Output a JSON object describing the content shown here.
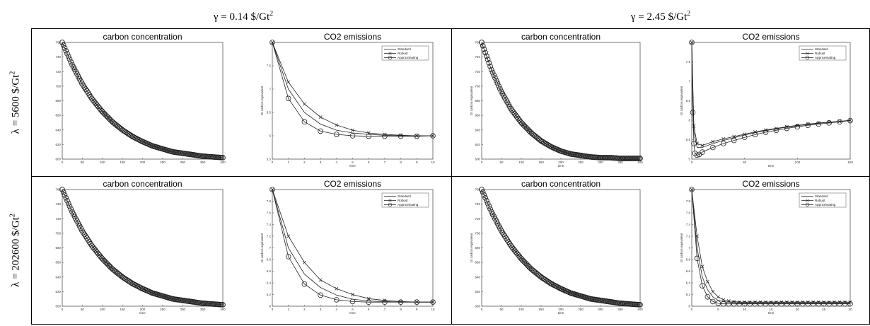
{
  "column_headers": [
    {
      "text": "γ = 0.14 $/Gt",
      "sup": "2"
    },
    {
      "text": "γ = 2.45 $/Gt",
      "sup": "2"
    }
  ],
  "row_labels": [
    {
      "text": "λ = 5600 $/Gt",
      "sup": "2"
    },
    {
      "text": "λ = 202600 $/Gt",
      "sup": "2"
    }
  ],
  "colors": {
    "line": "#222222",
    "axis": "#555555",
    "background": "#ffffff"
  },
  "chart_data": [
    {
      "id": "r0c0",
      "type": "line",
      "title": "carbon concentration",
      "xlabel": "",
      "ylabel": "",
      "xlim": [
        0,
        400
      ],
      "ylim": [
        600,
        760
      ],
      "xticks": [
        0,
        50,
        100,
        150,
        200,
        250,
        300,
        350,
        400
      ],
      "yticks": [
        600,
        620,
        640,
        660,
        680,
        700,
        720,
        740,
        760
      ],
      "yticklabels": [
        "600",
        "620",
        "640",
        "660",
        "680",
        "700",
        "720",
        "740",
        "760"
      ],
      "markers": "dense-circle",
      "series": [
        {
          "x": [
            0,
            25,
            50,
            75,
            100,
            125,
            150,
            175,
            200,
            225,
            250,
            275,
            300,
            325,
            350,
            375,
            400
          ],
          "y": [
            760,
            729,
            703,
            682,
            665,
            651,
            640,
            631,
            624,
            618,
            614,
            610,
            608,
            606,
            604,
            603,
            602
          ]
        }
      ]
    },
    {
      "id": "r0c1",
      "type": "line",
      "title": "CO2 emissions",
      "xlabel": "time",
      "ylabel": "Gt carbon equivalent",
      "xlim": [
        0,
        10
      ],
      "ylim": [
        5.5,
        8
      ],
      "xticks": [
        0,
        1,
        2,
        3,
        4,
        5,
        6,
        7,
        8,
        9,
        10
      ],
      "yticks": [
        5.5,
        6,
        6.5,
        7,
        7.5
      ],
      "yticklabels": [
        "5.5",
        "6",
        "6.5",
        "7",
        "7.5"
      ],
      "legend": [
        "Standard",
        "Robust",
        "Approximating"
      ],
      "legend_position": "top-right",
      "series": [
        {
          "name": "Standard",
          "marker": "none",
          "x": [
            0,
            1,
            2,
            3,
            4,
            5,
            6,
            7,
            8,
            9,
            10
          ],
          "y": [
            8,
            7.0,
            6.5,
            6.25,
            6.12,
            6.06,
            6.03,
            6.01,
            6.0,
            6.0,
            6.0
          ]
        },
        {
          "name": "Robust",
          "marker": "x",
          "x": [
            0,
            1,
            2,
            3,
            4,
            5,
            6,
            7,
            8,
            9,
            10
          ],
          "y": [
            8,
            7.15,
            6.68,
            6.4,
            6.23,
            6.12,
            6.06,
            6.03,
            6.01,
            6.0,
            6.0
          ]
        },
        {
          "name": "Approximating",
          "marker": "o",
          "x": [
            0,
            1,
            2,
            3,
            4,
            5,
            6,
            7,
            8,
            9,
            10
          ],
          "y": [
            8,
            6.8,
            6.3,
            6.1,
            6.03,
            6.0,
            5.99,
            5.99,
            5.99,
            5.99,
            6.0
          ]
        }
      ]
    },
    {
      "id": "r0c2",
      "type": "line",
      "title": "carbon concentration",
      "xlabel": "time",
      "ylabel": "Gt carbon equivalent",
      "xlim": [
        0,
        400
      ],
      "ylim": [
        600,
        760
      ],
      "xticks": [
        0,
        50,
        100,
        150,
        200,
        250,
        300,
        350,
        400
      ],
      "yticks": [
        600,
        620,
        640,
        660,
        680,
        700,
        720,
        740,
        760
      ],
      "yticklabels": [
        "600",
        "620",
        "640",
        "660",
        "680",
        "700",
        "720",
        "740",
        "760"
      ],
      "markers": "dense-circle",
      "series": [
        {
          "x": [
            0,
            25,
            50,
            75,
            100,
            125,
            150,
            175,
            200,
            225,
            250,
            275,
            300,
            325,
            350,
            375,
            400
          ],
          "y": [
            760,
            722,
            692,
            668,
            650,
            636,
            625,
            617,
            611,
            607,
            605,
            603,
            602,
            602,
            601,
            601,
            601
          ]
        }
      ]
    },
    {
      "id": "r0c3",
      "type": "line",
      "title": "CO2 emissions",
      "xlabel": "time",
      "ylabel": "Gt carbon equivalent",
      "xlim": [
        0,
        150
      ],
      "ylim": [
        5,
        8
      ],
      "xticks": [
        0,
        50,
        100,
        150
      ],
      "yticks": [
        5,
        5.5,
        6,
        6.5,
        7,
        7.5
      ],
      "yticklabels": [
        "5",
        "5.5",
        "6",
        "6.5",
        "7",
        "7.5"
      ],
      "legend": [
        "Standard",
        "Robust",
        "Approximating"
      ],
      "legend_position": "top-right",
      "series": [
        {
          "name": "Standard",
          "marker": "none",
          "x": [
            0,
            2,
            5,
            10,
            20,
            30,
            40,
            50,
            60,
            70,
            80,
            90,
            100,
            110,
            120,
            130,
            140,
            150
          ],
          "y": [
            8,
            5.7,
            5.3,
            5.3,
            5.4,
            5.48,
            5.55,
            5.62,
            5.68,
            5.73,
            5.78,
            5.82,
            5.86,
            5.89,
            5.92,
            5.95,
            5.97,
            5.99
          ]
        },
        {
          "name": "Robust",
          "marker": "x",
          "x": [
            0,
            2,
            5,
            10,
            20,
            30,
            40,
            50,
            60,
            70,
            80,
            90,
            100,
            110,
            120,
            130,
            140,
            150
          ],
          "y": [
            8,
            5.85,
            5.4,
            5.35,
            5.45,
            5.52,
            5.58,
            5.64,
            5.7,
            5.75,
            5.79,
            5.83,
            5.87,
            5.9,
            5.93,
            5.95,
            5.97,
            6.0
          ]
        },
        {
          "name": "Approximating",
          "marker": "o",
          "x": [
            0,
            1,
            2,
            3,
            5,
            7,
            10,
            20,
            30,
            40,
            50,
            60,
            70,
            80,
            90,
            100,
            110,
            120,
            130,
            140,
            150
          ],
          "y": [
            8,
            6.2,
            5.4,
            5.15,
            5.1,
            5.12,
            5.18,
            5.3,
            5.4,
            5.48,
            5.56,
            5.63,
            5.69,
            5.74,
            5.79,
            5.83,
            5.87,
            5.9,
            5.93,
            5.96,
            5.99
          ]
        }
      ]
    },
    {
      "id": "r1c0",
      "type": "line",
      "title": "carbon concentration",
      "xlabel": "time",
      "ylabel": "",
      "xlim": [
        0,
        400
      ],
      "ylim": [
        600,
        760
      ],
      "xticks": [
        0,
        50,
        100,
        150,
        200,
        250,
        300,
        350,
        400
      ],
      "yticks": [
        600,
        620,
        640,
        660,
        680,
        700,
        720,
        740,
        760
      ],
      "yticklabels": [
        "600",
        "620",
        "640",
        "660",
        "680",
        "700",
        "720",
        "740",
        "760"
      ],
      "markers": "dense-circle",
      "series": [
        {
          "x": [
            0,
            25,
            50,
            75,
            100,
            125,
            150,
            175,
            200,
            225,
            250,
            275,
            300,
            325,
            350,
            375,
            400
          ],
          "y": [
            760,
            729,
            703,
            682,
            665,
            651,
            640,
            631,
            624,
            618,
            614,
            610,
            608,
            606,
            604,
            603,
            602
          ]
        }
      ]
    },
    {
      "id": "r1c1",
      "type": "line",
      "title": "CO2 emissions",
      "xlabel": "time",
      "ylabel": "Gt carbon equivalent",
      "xlim": [
        0,
        10
      ],
      "ylim": [
        6,
        8
      ],
      "xticks": [
        0,
        1,
        2,
        3,
        4,
        5,
        6,
        7,
        8,
        9,
        10
      ],
      "yticks": [
        6,
        6.2,
        6.4,
        6.6,
        6.8,
        7,
        7.2,
        7.4,
        7.6,
        7.8
      ],
      "yticklabels": [
        "6",
        "6.2",
        "6.4",
        "6.6",
        "6.8",
        "7",
        "7.2",
        "7.4",
        "7.6",
        "7.8"
      ],
      "legend": [
        "Standard",
        "Robust",
        "Approximating"
      ],
      "legend_position": "top-right",
      "series": [
        {
          "name": "Standard",
          "marker": "none",
          "x": [
            0,
            1,
            2,
            3,
            4,
            5,
            6,
            7,
            8,
            9,
            10
          ],
          "y": [
            8,
            7.0,
            6.55,
            6.32,
            6.19,
            6.12,
            6.09,
            6.08,
            6.07,
            6.07,
            6.07
          ]
        },
        {
          "name": "Robust",
          "marker": "x",
          "x": [
            0,
            1,
            2,
            3,
            4,
            5,
            6,
            7,
            8,
            9,
            10
          ],
          "y": [
            8,
            7.2,
            6.75,
            6.45,
            6.3,
            6.2,
            6.13,
            6.1,
            6.08,
            6.07,
            6.07
          ]
        },
        {
          "name": "Approximating",
          "marker": "o",
          "x": [
            0,
            1,
            2,
            3,
            4,
            5,
            6,
            7,
            8,
            9,
            10
          ],
          "y": [
            8,
            6.85,
            6.38,
            6.19,
            6.11,
            6.08,
            6.07,
            6.07,
            6.07,
            6.07,
            6.07
          ]
        }
      ]
    },
    {
      "id": "r1c2",
      "type": "line",
      "title": "carbon concentration",
      "xlabel": "time",
      "ylabel": "Gt carbon equivalent",
      "xlim": [
        0,
        400
      ],
      "ylim": [
        600,
        760
      ],
      "xticks": [
        0,
        50,
        100,
        150,
        200,
        250,
        300,
        350,
        400
      ],
      "yticks": [
        600,
        620,
        640,
        660,
        680,
        700,
        720,
        740,
        760
      ],
      "yticklabels": [
        "600",
        "620",
        "640",
        "660",
        "680",
        "700",
        "720",
        "740",
        "760"
      ],
      "markers": "dense-circle",
      "series": [
        {
          "x": [
            0,
            25,
            50,
            75,
            100,
            125,
            150,
            175,
            200,
            225,
            250,
            275,
            300,
            325,
            350,
            375,
            400
          ],
          "y": [
            760,
            729,
            703,
            682,
            665,
            651,
            640,
            631,
            624,
            618,
            614,
            610,
            608,
            606,
            604,
            603,
            602
          ]
        }
      ]
    },
    {
      "id": "r1c3",
      "type": "line",
      "title": "CO2 emissions",
      "xlabel": "time",
      "ylabel": "Gt carbon equivalent",
      "xlim": [
        0,
        30
      ],
      "ylim": [
        6,
        8
      ],
      "xticks": [
        0,
        5,
        10,
        15,
        20,
        25,
        30
      ],
      "yticks": [
        6,
        6.2,
        6.4,
        6.6,
        6.8,
        7,
        7.2,
        7.4,
        7.6,
        7.8
      ],
      "yticklabels": [
        "6",
        "6.2",
        "6.4",
        "6.6",
        "6.8",
        "7",
        "7.2",
        "7.4",
        "7.6",
        "7.8"
      ],
      "legend": [
        "Standard",
        "Robust",
        "Approximating"
      ],
      "legend_position": "top-right",
      "series": [
        {
          "name": "Standard",
          "marker": "none",
          "x": [
            0,
            1,
            2,
            3,
            4,
            5,
            6,
            8,
            10,
            15,
            20,
            25,
            30
          ],
          "y": [
            8,
            7.0,
            6.5,
            6.28,
            6.16,
            6.1,
            6.08,
            6.06,
            6.05,
            6.05,
            6.05,
            6.05,
            6.05
          ]
        },
        {
          "name": "Robust",
          "marker": "x",
          "x": [
            0,
            1,
            2,
            3,
            4,
            5,
            6,
            7,
            8,
            9,
            10,
            11,
            12,
            13,
            14,
            15,
            16,
            17,
            18,
            19,
            20,
            21,
            22,
            23,
            24,
            25,
            26,
            27,
            28,
            29,
            30
          ],
          "y": [
            8,
            7.2,
            6.68,
            6.42,
            6.25,
            6.16,
            6.11,
            6.09,
            6.08,
            6.07,
            6.07,
            6.07,
            6.07,
            6.07,
            6.07,
            6.07,
            6.07,
            6.07,
            6.07,
            6.07,
            6.07,
            6.07,
            6.07,
            6.07,
            6.07,
            6.07,
            6.07,
            6.07,
            6.07,
            6.07,
            6.07
          ]
        },
        {
          "name": "Approximating",
          "marker": "o",
          "x": [
            0,
            1,
            2,
            3,
            4,
            5,
            6,
            7,
            8,
            9,
            10,
            11,
            12,
            13,
            14,
            15,
            16,
            17,
            18,
            19,
            20,
            21,
            22,
            23,
            24,
            25,
            26,
            27,
            28,
            29,
            30
          ],
          "y": [
            8,
            6.82,
            6.35,
            6.16,
            6.08,
            6.05,
            6.04,
            6.04,
            6.04,
            6.04,
            6.04,
            6.04,
            6.04,
            6.04,
            6.04,
            6.04,
            6.04,
            6.04,
            6.04,
            6.04,
            6.04,
            6.04,
            6.04,
            6.04,
            6.04,
            6.04,
            6.04,
            6.04,
            6.04,
            6.04,
            6.04
          ]
        }
      ]
    }
  ]
}
